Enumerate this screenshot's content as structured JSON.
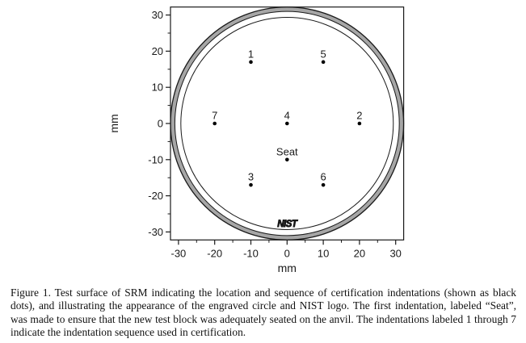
{
  "figure_caption": "Figure 1.  Test surface of SRM indicating the location and sequence of certification indentations (shown as black dots), and illustrating the appearance of the engraved circle and NIST logo.  The first indentation, labeled “Seat”, was made to ensure that the new test block was adequately seated on the anvil.  The indentations labeled 1 through 7 indicate the indentation sequence used in certification.",
  "chart_data": {
    "type": "scatter",
    "title": "",
    "xlabel": "mm",
    "ylabel": "mm",
    "xlim": [
      -32.2,
      32.2
    ],
    "ylim": [
      -32.2,
      32.2
    ],
    "x_major_ticks": [
      -30,
      -20,
      -10,
      0,
      10,
      20,
      30
    ],
    "y_major_ticks": [
      -30,
      -20,
      -10,
      0,
      10,
      20,
      30
    ],
    "minor_tick_step": 5,
    "grid": false,
    "legend": "none",
    "point_color": "#000000",
    "frame_color": "#1a1a1a",
    "band_color": "#a6a6a6",
    "points": [
      {
        "label": "1",
        "x": -10,
        "y": 17
      },
      {
        "label": "5",
        "x": 10,
        "y": 17
      },
      {
        "label": "7",
        "x": -20,
        "y": 0
      },
      {
        "label": "4",
        "x": 0,
        "y": 0
      },
      {
        "label": "2",
        "x": 20,
        "y": 0
      },
      {
        "label": "Seat",
        "x": 0,
        "y": -10
      },
      {
        "label": "3",
        "x": -10,
        "y": -17
      },
      {
        "label": "6",
        "x": 10,
        "y": -17
      }
    ],
    "circles": [
      {
        "name": "block-edge-band",
        "r": 31.6,
        "stroke": "#a6a6a6",
        "band_width": 1.15
      },
      {
        "name": "block-edge-outer",
        "r": 32.2,
        "stroke": "#1a1a1a",
        "width": 1.3
      },
      {
        "name": "block-edge-inner",
        "r": 31.0,
        "stroke": "#1a1a1a",
        "width": 1.0
      },
      {
        "name": "engraved-circle",
        "r": 29.35,
        "stroke": "#1a1a1a",
        "width": 1.0
      }
    ],
    "logo": {
      "text": "NIST",
      "x": 0,
      "y": -28
    }
  }
}
